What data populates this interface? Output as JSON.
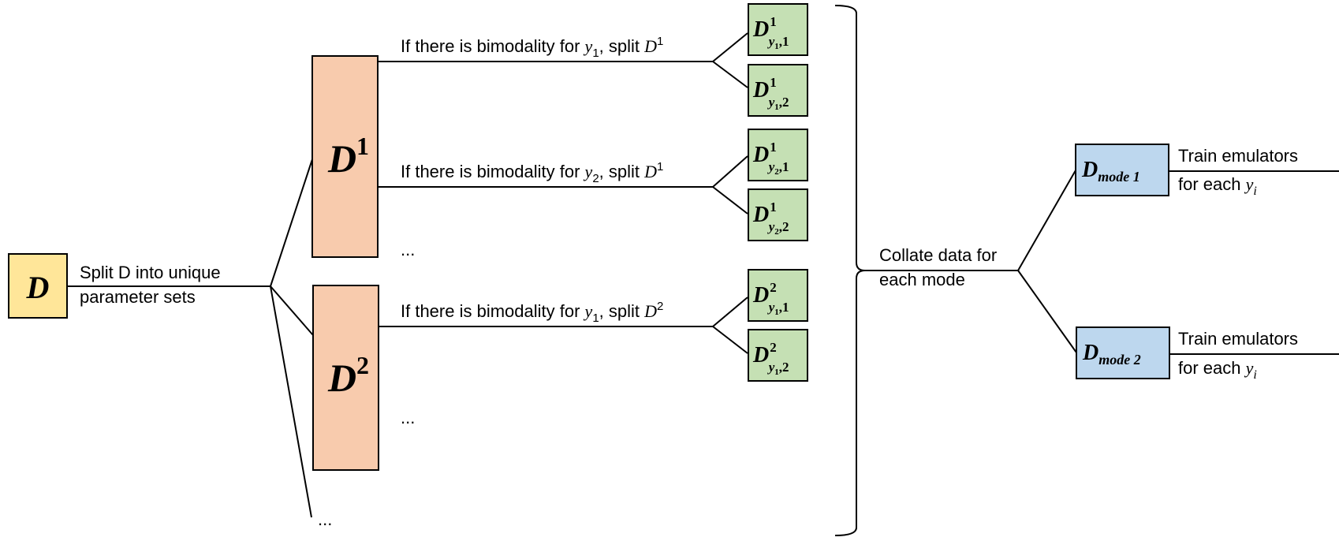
{
  "colors": {
    "root_fill": "#FFE699",
    "level1_fill": "#F8CBAD",
    "level2_fill": "#C5E0B4",
    "mode_fill": "#BDD7EE",
    "stroke": "#000000"
  },
  "root": {
    "symbol": "D"
  },
  "root_label": {
    "line1": "Split D into unique",
    "line2": "parameter sets"
  },
  "level1": [
    {
      "symbol": "D",
      "sup": "1"
    },
    {
      "symbol": "D",
      "sup": "2"
    }
  ],
  "level1_more": "...",
  "splits": [
    {
      "prefix": "If there is bimodality for ",
      "var": "y",
      "var_sub": "1",
      "mid": ", split ",
      "d": "D",
      "d_sup": "1"
    },
    {
      "prefix": "If there is bimodality for ",
      "var": "y",
      "var_sub": "2",
      "mid": ", split ",
      "d": "D",
      "d_sup": "1"
    },
    {
      "prefix": "If there is bimodality for ",
      "var": "y",
      "var_sub": "1",
      "mid": ", split ",
      "d": "D",
      "d_sup": "2"
    }
  ],
  "split_more": [
    "...",
    "..."
  ],
  "leaves": [
    {
      "symbol": "D",
      "sup": "1",
      "sub_var": "y",
      "sub_var_sub": "1",
      "sub_idx": "1"
    },
    {
      "symbol": "D",
      "sup": "1",
      "sub_var": "y",
      "sub_var_sub": "1",
      "sub_idx": "2"
    },
    {
      "symbol": "D",
      "sup": "1",
      "sub_var": "y",
      "sub_var_sub": "2",
      "sub_idx": "1"
    },
    {
      "symbol": "D",
      "sup": "1",
      "sub_var": "y",
      "sub_var_sub": "2",
      "sub_idx": "2"
    },
    {
      "symbol": "D",
      "sup": "2",
      "sub_var": "y",
      "sub_var_sub": "1",
      "sub_idx": "1"
    },
    {
      "symbol": "D",
      "sup": "2",
      "sub_var": "y",
      "sub_var_sub": "1",
      "sub_idx": "2"
    }
  ],
  "collate_label": {
    "line1": "Collate data for",
    "line2": "each mode"
  },
  "modes": [
    {
      "symbol": "D",
      "sub": "mode 1"
    },
    {
      "symbol": "D",
      "sub": "mode 2"
    }
  ],
  "train_label": {
    "line1": "Train emulators",
    "line2_prefix": "for each ",
    "var": "y",
    "var_sub": "i"
  }
}
